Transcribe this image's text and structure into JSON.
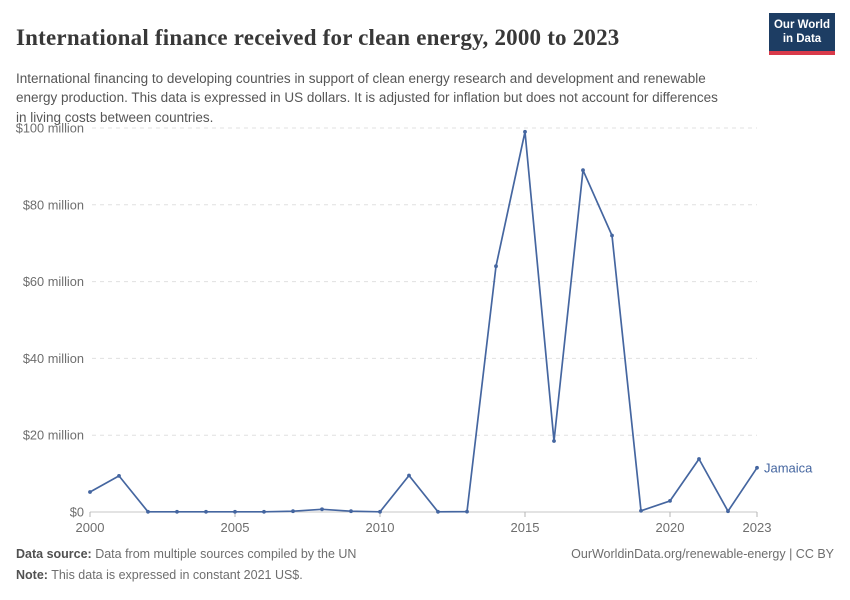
{
  "header": {
    "title": "International finance received for clean energy, 2000 to 2023",
    "subtitle": "International financing to developing countries in support of clean energy research and development and renewable energy production. This data is expressed in US dollars. It is adjusted for inflation but does not account for differences in living costs between countries.",
    "logo_line1": "Our World",
    "logo_line2": "in Data"
  },
  "chart_data": {
    "type": "line",
    "title": "International finance received for clean energy, 2000 to 2023",
    "entity": "Jamaica",
    "unit": "constant 2021 US$",
    "x": [
      2000,
      2001,
      2002,
      2003,
      2004,
      2005,
      2006,
      2007,
      2008,
      2009,
      2010,
      2011,
      2012,
      2013,
      2014,
      2015,
      2016,
      2017,
      2018,
      2019,
      2020,
      2021,
      2022,
      2023
    ],
    "values": [
      5.2,
      9.4,
      0.05,
      0.05,
      0.05,
      0.05,
      0.05,
      0.2,
      0.7,
      0.2,
      0.05,
      9.5,
      0.05,
      0.1,
      64,
      99,
      18.5,
      89,
      72,
      0.3,
      2.9,
      13.8,
      0.2,
      11.5
    ],
    "values_unit": "million US$",
    "ylim": [
      0,
      100
    ],
    "yticks": [
      0,
      20,
      40,
      60,
      80,
      100
    ],
    "ytick_labels": [
      "$0",
      "$20 million",
      "$40 million",
      "$60 million",
      "$80 million",
      "$100 million"
    ],
    "xticks": [
      2000,
      2005,
      2010,
      2015,
      2020,
      2023
    ],
    "grid": "horizontal-dashed",
    "legend_position": "end-of-line",
    "line_color": "#4566a0",
    "axis_text_color": "#6e6e6e",
    "grid_color": "#e0e0e0",
    "axis_line_color": "#c7c7c7"
  },
  "footer": {
    "datasource_label": "Data source:",
    "datasource_text": " Data from multiple sources compiled by the UN",
    "note_label": "Note:",
    "note_text": " This data is expressed in constant 2021 US$.",
    "link": "OurWorldinData.org/renewable-energy | CC BY"
  }
}
